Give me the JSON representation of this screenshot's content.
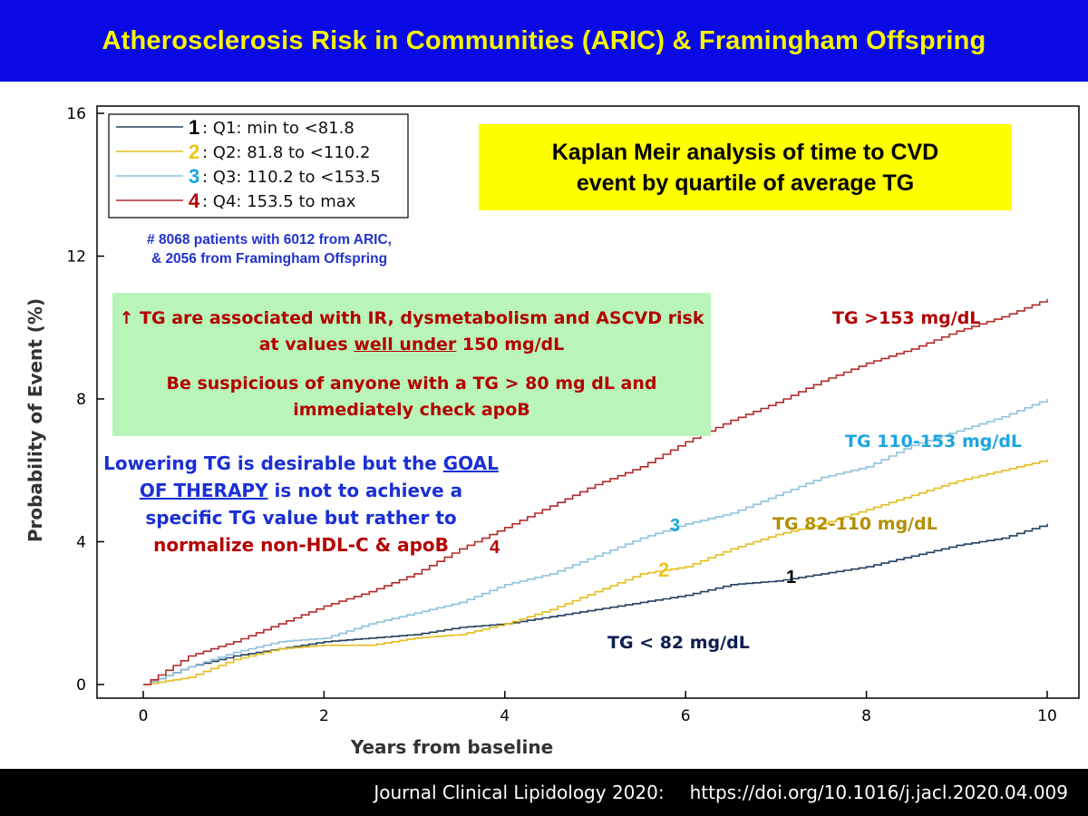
{
  "header": {
    "title": "Atherosclerosis Risk in Communities (ARIC) & Framingham Offspring"
  },
  "footer": {
    "citation": "Journal Clinical Lipidology 2020:",
    "doi": "https://doi.org/10.1016/j.jacl.2020.04.009"
  },
  "km_box": {
    "line1": "Kaplan Meir analysis of time to CVD",
    "line2": "event by quartile of average TG"
  },
  "patients_note": {
    "line1": "# 8068 patients with 6012 from ARIC,",
    "line2": "& 2056 from Framingham Offspring"
  },
  "green_box": {
    "p1_before": "↑ TG are associated with IR, dysmetabolism and ASCVD risk at values ",
    "p1_underlined": "well under",
    "p1_after": " 150 mg/dL",
    "p2": "Be suspicious of anyone with a TG > 80 mg dL and immediately check apoB"
  },
  "therapy_note": {
    "part1": "Lowering TG is desirable but the ",
    "underlined": "GOAL OF THERAPY",
    "part2": " is not to achieve a specific TG value but rather to ",
    "part3": "normalize non-HDL-C & apoB"
  },
  "colors": {
    "header_bg": "#0a0ae6",
    "header_text": "#f5f500",
    "q1": "#24405e",
    "q2": "#e3bd1f",
    "q3": "#8ec3da",
    "q4": "#b22a2a"
  },
  "chart_data": {
    "type": "line",
    "xlabel": "Years from baseline",
    "ylabel": "Probability of Event (%)",
    "xlim": [
      0,
      10
    ],
    "ylim": [
      0,
      16
    ],
    "xticks": [
      "0",
      "2",
      "4",
      "6",
      "8",
      "10"
    ],
    "yticks": [
      "0",
      "4",
      "8",
      "12",
      "16"
    ],
    "xtick_values": [
      0,
      2,
      4,
      6,
      8,
      10
    ],
    "ytick_values": [
      0,
      4,
      8,
      12,
      16
    ],
    "grid": false,
    "legend_position": "top-left",
    "x": [
      0,
      0.5,
      1,
      1.5,
      2,
      2.5,
      3,
      3.5,
      4,
      4.5,
      5,
      5.5,
      6,
      6.5,
      7,
      7.5,
      8,
      8.5,
      9,
      9.5,
      10
    ],
    "series": [
      {
        "key": "q1",
        "number": "1",
        "name": "Q1: min to <81.8",
        "color": "#24405e",
        "values": [
          0,
          0.5,
          0.8,
          1.0,
          1.2,
          1.3,
          1.4,
          1.6,
          1.7,
          1.9,
          2.1,
          2.3,
          2.5,
          2.8,
          2.9,
          3.1,
          3.3,
          3.6,
          3.9,
          4.1,
          4.5
        ]
      },
      {
        "key": "q2",
        "number": "2",
        "name": "Q2: 81.8 to <110.2",
        "color": "#e3bd1f",
        "values": [
          0,
          0.2,
          0.7,
          1.0,
          1.1,
          1.1,
          1.3,
          1.4,
          1.7,
          2.1,
          2.6,
          3.1,
          3.3,
          3.8,
          4.2,
          4.5,
          4.9,
          5.3,
          5.7,
          6.0,
          6.3
        ]
      },
      {
        "key": "q3",
        "number": "3",
        "name": "Q3: 110.2 to <153.5",
        "color": "#8ec3da",
        "values": [
          0,
          0.5,
          0.9,
          1.2,
          1.3,
          1.7,
          2.0,
          2.3,
          2.8,
          3.1,
          3.6,
          4.1,
          4.5,
          4.8,
          5.3,
          5.8,
          6.1,
          6.7,
          7.1,
          7.5,
          8.0
        ]
      },
      {
        "key": "q4",
        "number": "4",
        "name": "Q4: 153.5 to max",
        "color": "#b22a2a",
        "values": [
          0,
          0.8,
          1.2,
          1.7,
          2.2,
          2.6,
          3.1,
          3.8,
          4.4,
          5.0,
          5.6,
          6.1,
          6.8,
          7.4,
          7.9,
          8.5,
          9.0,
          9.4,
          9.9,
          10.3,
          10.8
        ]
      }
    ],
    "annotations": [
      {
        "key": "q4",
        "text": "TG >153 mg/dL",
        "color": "#b30000"
      },
      {
        "key": "q3",
        "text": "TG 110-153 mg/dL",
        "color": "#1aa6e0"
      },
      {
        "key": "q2",
        "text": "TG 82-110 mg/dL",
        "color": "#b38f00"
      },
      {
        "key": "q1",
        "text": "TG < 82 mg/dL",
        "color": "#101d50"
      }
    ],
    "curve_numbers": [
      {
        "text": "3",
        "color": "#1aa6e0"
      },
      {
        "text": "4",
        "color": "#b30000"
      },
      {
        "text": "2",
        "color": "#f0c419"
      },
      {
        "text": "1",
        "color": "#000000"
      }
    ]
  }
}
